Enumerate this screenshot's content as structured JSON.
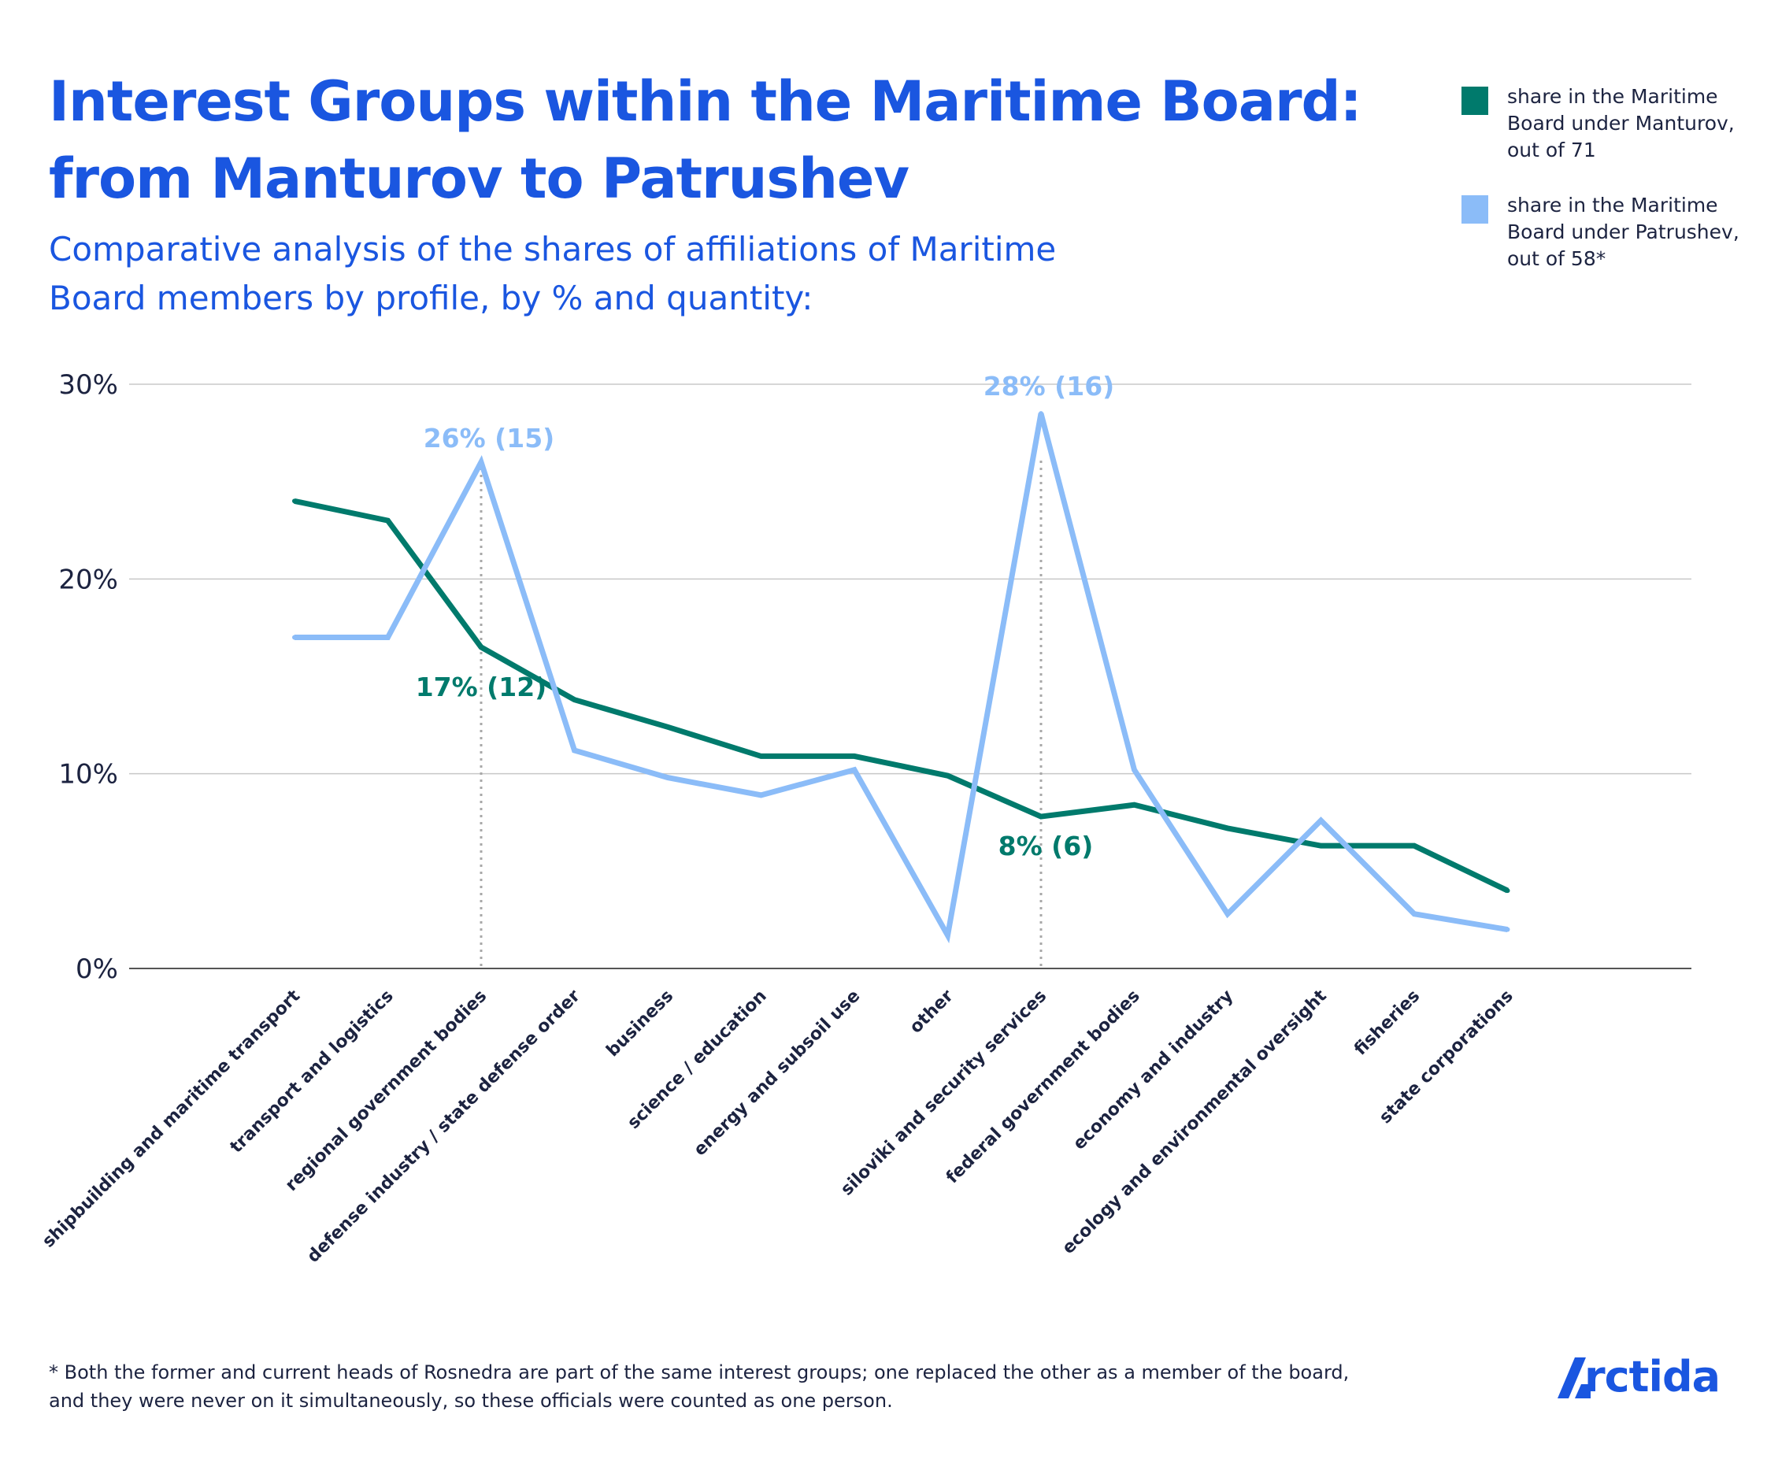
{
  "title": "Interest Groups within the Maritime Board: from Manturov to Patrushev",
  "subtitle": "Comparative analysis of the shares of affiliations of Maritime Board members by profile, by % and quantity:",
  "footnote": "* Both the former and current heads of Rosnedra are part of the same interest groups; one replaced the other as a member of the board, and they were never on it simultaneously, so these officials were counted as one person.",
  "brand": "rctida",
  "colors": {
    "title": "#1a56e0",
    "manturov": "#007a6c",
    "patrushev": "#8bbcf8",
    "text": "#1c2340",
    "grid": "#c8c8c8"
  },
  "chart_data": {
    "type": "line",
    "categories": [
      "shipbuilding and maritime transport",
      "transport and logistics",
      "regional government bodies",
      "defense industry / state defense order",
      "business",
      "science / education",
      "energy and subsoil use",
      "other",
      "siloviki and security services",
      "federal government bodies",
      "economy and industry",
      "ecology and environmental oversight",
      "fisheries",
      "state corporations"
    ],
    "series": [
      {
        "name": "share in the Maritime Board under Manturov, out of 71",
        "color": "#007a6c",
        "values": [
          24,
          23,
          16.5,
          13.8,
          12.4,
          10.9,
          10.9,
          9.9,
          7.8,
          8.4,
          7.2,
          6.3,
          6.3,
          4
        ]
      },
      {
        "name": "share in the Maritime Board under Patrushev, out of 58*",
        "color": "#8bbcf8",
        "values": [
          17,
          17,
          26,
          11.2,
          9.8,
          8.9,
          10.2,
          1.7,
          28.5,
          10.2,
          2.8,
          7.6,
          2.8,
          2
        ]
      }
    ],
    "yticks": [
      "0%",
      "10%",
      "20%",
      "30%"
    ],
    "ytick_values": [
      0,
      10,
      20,
      30
    ],
    "ylim": [
      0,
      30
    ],
    "grid": true,
    "legend_position": "top-right",
    "annotations": [
      {
        "text": "26% (15)",
        "series": 1,
        "category_index": 2,
        "value": 26,
        "color": "#8bbcf8"
      },
      {
        "text": "17% (12)",
        "series": 0,
        "category_index": 2,
        "value": 16.5,
        "color": "#007a6c"
      },
      {
        "text": "28% (16)",
        "series": 1,
        "category_index": 8,
        "value": 28.5,
        "color": "#8bbcf8"
      },
      {
        "text": "8% (6)",
        "series": 0,
        "category_index": 8,
        "value": 7.8,
        "color": "#007a6c"
      }
    ],
    "reference_lines": [
      {
        "category_index": 2
      },
      {
        "category_index": 8
      }
    ]
  }
}
